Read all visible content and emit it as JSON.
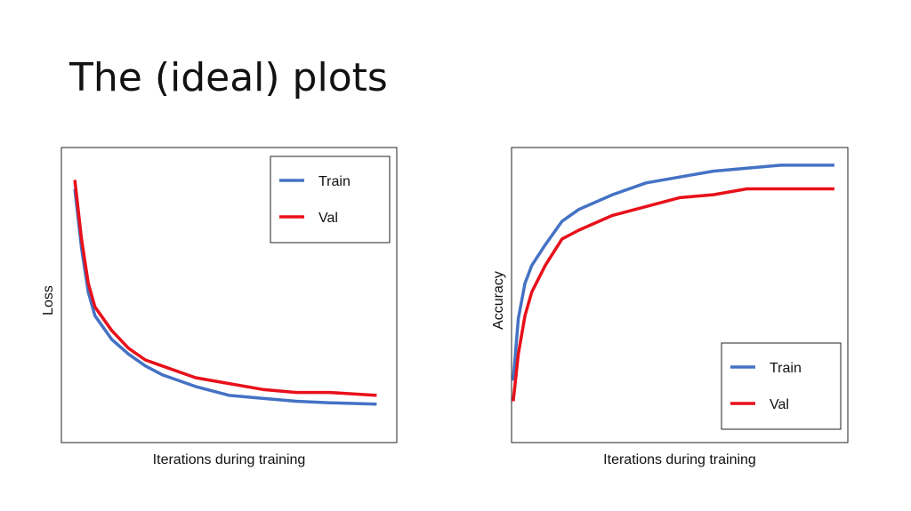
{
  "title": "The (ideal) plots",
  "chart_data": [
    {
      "type": "line",
      "xlabel": "Iterations during training",
      "ylabel": "Loss",
      "xlim": [
        0,
        100
      ],
      "ylim": [
        0,
        100
      ],
      "legend": "upper right",
      "x": [
        4,
        6,
        8,
        10,
        15,
        20,
        25,
        30,
        40,
        50,
        60,
        70,
        80,
        94
      ],
      "series": [
        {
          "name": "Train",
          "color": "#4472c4",
          "values": [
            86,
            66,
            51,
            43,
            35,
            30,
            26,
            23,
            19,
            16,
            15,
            14,
            13.5,
            13
          ]
        },
        {
          "name": "Val",
          "color": "#e8101a",
          "values": [
            89,
            69,
            54,
            46,
            38,
            32,
            28,
            26,
            22,
            20,
            18,
            17,
            17,
            16
          ]
        }
      ]
    },
    {
      "type": "line",
      "xlabel": "Iterations during training",
      "ylabel": "Accuracy",
      "xlim": [
        0,
        100
      ],
      "ylim": [
        0,
        100
      ],
      "legend": "lower right",
      "x": [
        0.5,
        2,
        4,
        6,
        10,
        15,
        20,
        30,
        40,
        50,
        60,
        70,
        80,
        96
      ],
      "series": [
        {
          "name": "Train",
          "color": "#4472c4",
          "values": [
            21,
            42,
            54,
            60,
            67,
            75,
            79,
            84,
            88,
            90,
            92,
            93,
            94,
            94
          ]
        },
        {
          "name": "Val",
          "color": "#e8101a",
          "values": [
            14,
            30,
            43,
            51,
            60,
            69,
            72,
            77,
            80,
            83,
            84,
            86,
            86,
            86
          ]
        }
      ]
    }
  ]
}
